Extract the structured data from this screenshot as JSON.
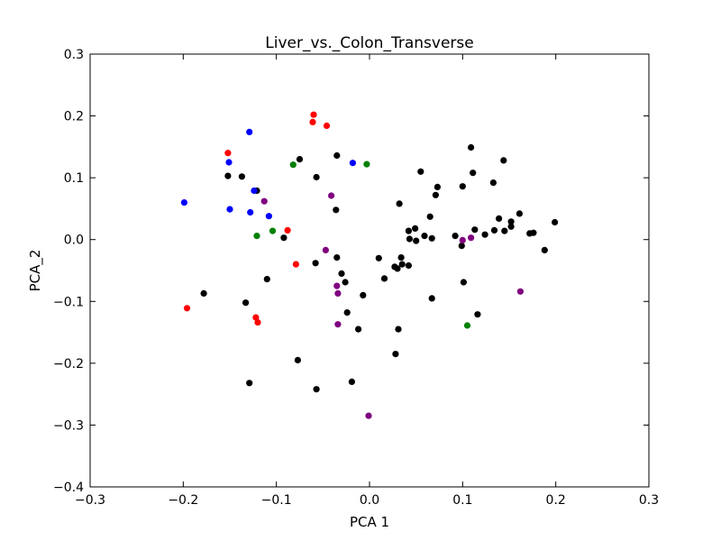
{
  "chart_data": {
    "type": "scatter",
    "title": "Liver_vs._Colon_Transverse",
    "xlabel": "PCA 1",
    "ylabel": "PCA_2",
    "xlim": [
      -0.3,
      0.3
    ],
    "ylim": [
      -0.4,
      0.3
    ],
    "xticks": [
      -0.3,
      -0.2,
      -0.1,
      0.0,
      0.1,
      0.2,
      0.3
    ],
    "yticks": [
      -0.4,
      -0.3,
      -0.2,
      -0.1,
      0.0,
      0.1,
      0.2,
      0.3
    ],
    "xtick_labels": [
      "−0.3",
      "−0.2",
      "−0.1",
      "0.0",
      "0.1",
      "0.2",
      "0.3"
    ],
    "ytick_labels": [
      "−0.4",
      "−0.3",
      "−0.2",
      "−0.1",
      "0.0",
      "0.1",
      "0.2",
      "0.3"
    ],
    "grid": false,
    "series": [
      {
        "color": "#000000",
        "points": [
          [
            -0.075,
            0.13
          ],
          [
            -0.035,
            0.136
          ],
          [
            -0.057,
            0.101
          ],
          [
            -0.152,
            0.103
          ],
          [
            -0.137,
            0.102
          ],
          [
            -0.121,
            0.079
          ],
          [
            -0.036,
            0.048
          ],
          [
            -0.092,
            0.003
          ],
          [
            -0.11,
            -0.064
          ],
          [
            -0.178,
            -0.087
          ],
          [
            -0.133,
            -0.102
          ],
          [
            -0.058,
            -0.038
          ],
          [
            -0.035,
            -0.029
          ],
          [
            -0.03,
            -0.055
          ],
          [
            -0.026,
            -0.069
          ],
          [
            -0.007,
            -0.09
          ],
          [
            -0.024,
            -0.118
          ],
          [
            -0.012,
            -0.145
          ],
          [
            -0.077,
            -0.195
          ],
          [
            -0.057,
            -0.242
          ],
          [
            -0.019,
            -0.23
          ],
          [
            -0.129,
            -0.232
          ],
          [
            0.01,
            -0.03
          ],
          [
            0.016,
            -0.063
          ],
          [
            0.027,
            -0.044
          ],
          [
            0.03,
            -0.047
          ],
          [
            0.035,
            -0.04
          ],
          [
            0.034,
            -0.029
          ],
          [
            0.042,
            -0.042
          ],
          [
            0.028,
            -0.185
          ],
          [
            0.031,
            -0.145
          ],
          [
            0.032,
            0.058
          ],
          [
            0.042,
            0.014
          ],
          [
            0.043,
            0.001
          ],
          [
            0.049,
            0.018
          ],
          [
            0.05,
            -0.002
          ],
          [
            0.055,
            0.11
          ],
          [
            0.059,
            0.006
          ],
          [
            0.065,
            0.037
          ],
          [
            0.067,
            0.002
          ],
          [
            0.067,
            -0.095
          ],
          [
            0.071,
            0.072
          ],
          [
            0.073,
            0.085
          ],
          [
            0.092,
            0.006
          ],
          [
            0.099,
            -0.01
          ],
          [
            0.1,
            0.086
          ],
          [
            0.101,
            -0.069
          ],
          [
            0.109,
            0.149
          ],
          [
            0.111,
            0.108
          ],
          [
            0.113,
            0.016
          ],
          [
            0.116,
            -0.121
          ],
          [
            0.124,
            0.008
          ],
          [
            0.133,
            0.092
          ],
          [
            0.134,
            0.015
          ],
          [
            0.139,
            0.034
          ],
          [
            0.144,
            0.128
          ],
          [
            0.145,
            0.014
          ],
          [
            0.152,
            0.029
          ],
          [
            0.152,
            0.021
          ],
          [
            0.161,
            0.042
          ],
          [
            0.172,
            0.01
          ],
          [
            0.176,
            0.011
          ],
          [
            0.188,
            -0.017
          ],
          [
            0.199,
            0.028
          ]
        ]
      },
      {
        "color": "#0000ff",
        "points": [
          [
            -0.199,
            0.06
          ],
          [
            -0.151,
            0.125
          ],
          [
            -0.15,
            0.049
          ],
          [
            -0.129,
            0.174
          ],
          [
            -0.124,
            0.079
          ],
          [
            -0.128,
            0.044
          ],
          [
            -0.108,
            0.038
          ],
          [
            -0.018,
            0.124
          ]
        ]
      },
      {
        "color": "#ff0000",
        "points": [
          [
            -0.06,
            0.202
          ],
          [
            -0.061,
            0.19
          ],
          [
            -0.046,
            0.184
          ],
          [
            -0.152,
            0.14
          ],
          [
            -0.088,
            0.015
          ],
          [
            -0.079,
            -0.04
          ],
          [
            -0.196,
            -0.111
          ],
          [
            -0.122,
            -0.126
          ],
          [
            -0.12,
            -0.134
          ]
        ]
      },
      {
        "color": "#008000",
        "points": [
          [
            -0.082,
            0.121
          ],
          [
            -0.003,
            0.122
          ],
          [
            -0.104,
            0.014
          ],
          [
            -0.121,
            0.006
          ],
          [
            0.105,
            -0.139
          ]
        ]
      },
      {
        "color": "#800080",
        "points": [
          [
            -0.113,
            0.062
          ],
          [
            -0.041,
            0.071
          ],
          [
            -0.047,
            -0.017
          ],
          [
            -0.035,
            -0.075
          ],
          [
            -0.034,
            -0.087
          ],
          [
            -0.034,
            -0.137
          ],
          [
            -0.001,
            -0.285
          ],
          [
            0.1,
            -0.001
          ],
          [
            0.109,
            0.003
          ],
          [
            0.162,
            -0.084
          ]
        ]
      }
    ]
  }
}
